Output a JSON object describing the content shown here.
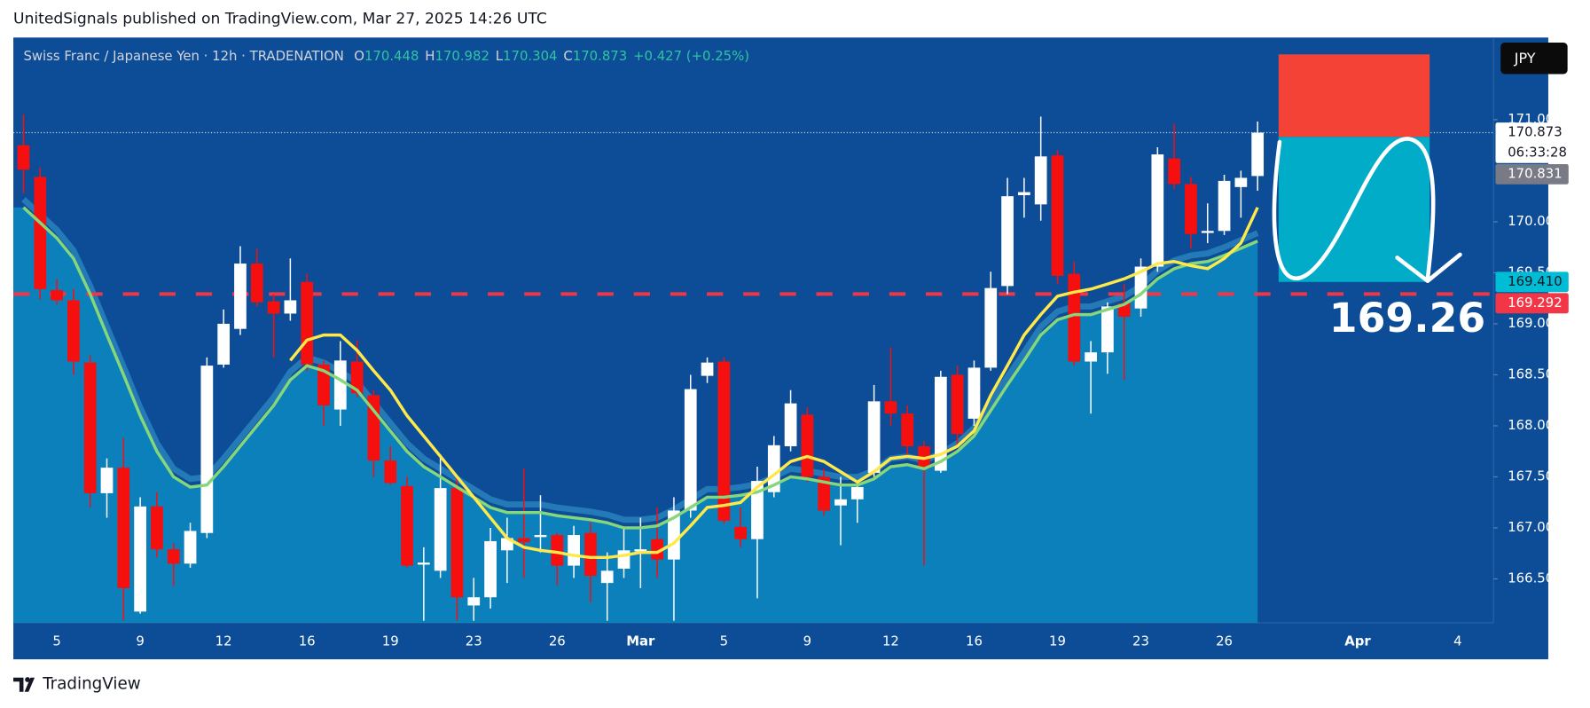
{
  "header": "UnitedSignals published on TradingView.com, Mar 27, 2025 14:26 UTC",
  "footer": "TradingView",
  "currency": "JPY",
  "chart_data": {
    "type": "candlestick",
    "title": "Swiss Franc  / Japanese Yen · 12h · TRADENATION",
    "legend": [
      {
        "key": "O",
        "value": "170.448"
      },
      {
        "key": "H",
        "value": "170.982"
      },
      {
        "key": "L",
        "value": "170.304"
      },
      {
        "key": "C",
        "value": "170.873"
      }
    ],
    "change": "+0.427 (+0.25%)",
    "categories": [
      null,
      null,
      "5",
      null,
      null,
      null,
      null,
      "9",
      null,
      null,
      null,
      null,
      "12",
      null,
      null,
      null,
      null,
      "16",
      null,
      null,
      null,
      null,
      "19",
      null,
      null,
      null,
      null,
      "23",
      null,
      null,
      null,
      null,
      "26",
      null,
      null,
      null,
      null,
      "Mar",
      null,
      null,
      null,
      null,
      "5",
      null,
      null,
      null,
      null,
      "9",
      null,
      null,
      null,
      null,
      "12",
      null,
      null,
      null,
      null,
      "16",
      null,
      null,
      null,
      null,
      "19",
      null,
      null,
      null,
      null,
      "23",
      null,
      null,
      null,
      null,
      "26",
      null,
      null,
      null,
      null,
      null,
      null,
      null,
      "Apr",
      null,
      null,
      null,
      null,
      null,
      "4"
    ],
    "open": [
      170.75,
      170.44,
      169.33,
      169.23,
      168.62,
      167.34,
      167.59,
      166.18,
      167.21,
      166.79,
      166.65,
      166.95,
      168.6,
      168.95,
      169.59,
      169.22,
      169.1,
      169.41,
      168.6,
      168.16,
      168.63,
      168.3,
      167.66,
      167.41,
      166.64,
      166.58,
      167.39,
      166.24,
      166.32,
      166.78,
      166.9,
      166.91,
      166.93,
      166.63,
      166.95,
      166.46,
      166.6,
      166.77,
      166.89,
      166.69,
      167.17,
      168.49,
      168.63,
      167.01,
      166.89,
      167.35,
      167.8,
      168.11,
      167.5,
      167.22,
      167.28,
      167.54,
      168.24,
      168.12,
      167.8,
      167.56,
      168.5,
      168.07,
      168.57,
      169.37,
      170.26,
      170.17,
      170.65,
      169.49,
      168.63,
      168.72,
      169.2,
      169.15,
      169.56,
      170.62,
      170.37,
      169.89,
      169.91,
      170.34,
      170.448,
      null,
      null,
      null,
      null,
      null,
      null,
      null,
      null,
      null,
      null,
      null,
      null
    ],
    "high": [
      171.05,
      170.53,
      169.44,
      169.34,
      168.69,
      167.68,
      167.88,
      167.3,
      167.35,
      166.85,
      167.05,
      168.67,
      169.14,
      169.76,
      169.74,
      169.29,
      169.64,
      169.49,
      168.64,
      168.83,
      168.84,
      168.35,
      167.8,
      167.5,
      166.81,
      167.72,
      167.5,
      166.51,
      167.0,
      167.1,
      167.58,
      167.32,
      166.95,
      167.02,
      167.05,
      166.76,
      167.0,
      167.1,
      167.2,
      167.3,
      168.5,
      168.67,
      168.67,
      167.2,
      167.6,
      167.9,
      168.35,
      168.18,
      167.58,
      167.5,
      167.45,
      168.4,
      168.77,
      168.2,
      167.85,
      168.54,
      168.59,
      168.64,
      169.51,
      170.43,
      170.43,
      171.03,
      170.7,
      169.61,
      168.83,
      169.21,
      169.39,
      169.64,
      170.73,
      170.96,
      170.44,
      170.18,
      170.46,
      170.5,
      170.982,
      null,
      null,
      null,
      null,
      null,
      null,
      null,
      null,
      null,
      null,
      null,
      null
    ],
    "low": [
      170.28,
      169.24,
      169.19,
      168.5,
      167.2,
      167.1,
      166.09,
      166.16,
      166.71,
      166.43,
      166.61,
      166.9,
      168.57,
      168.89,
      169.17,
      168.67,
      169.03,
      168.54,
      168.0,
      168.0,
      168.28,
      167.5,
      167.42,
      166.61,
      166.09,
      166.51,
      166.09,
      166.09,
      166.21,
      166.46,
      166.51,
      166.76,
      166.44,
      166.51,
      166.27,
      166.09,
      166.51,
      166.41,
      166.51,
      166.09,
      167.1,
      168.42,
      167.04,
      166.81,
      166.31,
      167.3,
      167.75,
      167.45,
      167.12,
      166.83,
      167.05,
      167.5,
      168.0,
      167.7,
      166.63,
      167.54,
      167.8,
      168.0,
      168.54,
      169.29,
      170.04,
      170.01,
      169.39,
      168.59,
      168.12,
      168.51,
      168.45,
      169.07,
      169.51,
      170.32,
      169.74,
      169.79,
      169.87,
      170.04,
      170.304,
      null,
      null,
      null,
      null,
      null,
      null,
      null,
      null,
      null,
      null,
      null,
      null
    ],
    "close": [
      170.51,
      169.34,
      169.23,
      168.63,
      167.34,
      167.59,
      166.41,
      167.21,
      166.79,
      166.65,
      166.97,
      168.59,
      169.0,
      169.59,
      169.21,
      169.1,
      169.23,
      168.6,
      168.2,
      168.64,
      168.32,
      167.66,
      167.44,
      166.63,
      166.66,
      167.39,
      166.32,
      166.32,
      166.87,
      166.9,
      166.86,
      166.93,
      166.63,
      166.93,
      166.53,
      166.58,
      166.78,
      166.79,
      166.69,
      167.17,
      168.36,
      168.62,
      167.07,
      166.89,
      167.46,
      167.81,
      168.22,
      167.5,
      167.17,
      167.28,
      167.4,
      168.24,
      168.12,
      167.8,
      167.58,
      168.48,
      167.92,
      168.57,
      169.35,
      170.25,
      170.29,
      170.64,
      169.47,
      168.63,
      168.72,
      169.17,
      169.07,
      169.56,
      170.66,
      170.37,
      169.88,
      169.91,
      170.4,
      170.43,
      170.873,
      null,
      null,
      null,
      null,
      null,
      null,
      null,
      null,
      null,
      null,
      null,
      null
    ],
    "up_color": "#ffffff",
    "down_color": "#f50f0f",
    "overlays": [
      {
        "color": "#86d67a",
        "area_color": "#0c86be",
        "values": [
          170.14,
          169.99,
          169.84,
          169.64,
          169.29,
          168.89,
          168.5,
          168.1,
          167.75,
          167.5,
          167.4,
          167.42,
          167.6,
          167.8,
          168.0,
          168.2,
          168.45,
          168.59,
          168.54,
          168.45,
          168.35,
          168.15,
          167.95,
          167.75,
          167.6,
          167.5,
          167.4,
          167.3,
          167.2,
          167.15,
          167.15,
          167.15,
          167.12,
          167.1,
          167.08,
          167.05,
          167.0,
          167.0,
          167.02,
          167.1,
          167.2,
          167.3,
          167.3,
          167.32,
          167.35,
          167.42,
          167.5,
          167.48,
          167.45,
          167.42,
          167.42,
          167.48,
          167.6,
          167.62,
          167.58,
          167.65,
          167.75,
          167.9,
          168.15,
          168.4,
          168.64,
          168.89,
          169.04,
          169.09,
          169.09,
          169.14,
          169.19,
          169.29,
          169.44,
          169.54,
          169.59,
          169.61,
          169.67,
          169.74,
          169.81
        ]
      },
      {
        "color": "#ffe94a",
        "values": [
          null,
          null,
          null,
          null,
          null,
          null,
          null,
          null,
          null,
          null,
          null,
          null,
          null,
          null,
          null,
          null,
          168.64,
          168.84,
          168.89,
          168.89,
          168.74,
          168.54,
          168.35,
          168.1,
          167.9,
          167.7,
          167.5,
          167.3,
          167.1,
          166.9,
          166.81,
          166.78,
          166.76,
          166.73,
          166.71,
          166.71,
          166.73,
          166.76,
          166.76,
          166.85,
          167.02,
          167.2,
          167.22,
          167.25,
          167.4,
          167.52,
          167.65,
          167.7,
          167.65,
          167.55,
          167.45,
          167.55,
          167.68,
          167.7,
          167.68,
          167.72,
          167.8,
          167.95,
          168.3,
          168.59,
          168.89,
          169.09,
          169.27,
          169.31,
          169.34,
          169.39,
          169.44,
          169.51,
          169.59,
          169.61,
          169.57,
          169.54,
          169.64,
          169.79,
          170.14
        ]
      }
    ],
    "ylim": [
      166.07,
      171.805
    ],
    "yticks": [
      {
        "value": 166.5,
        "label": "166.500"
      },
      {
        "value": 167,
        "label": "167.000"
      },
      {
        "value": 167.5,
        "label": "167.500"
      },
      {
        "value": 168,
        "label": "168.000"
      },
      {
        "value": 168.5,
        "label": "168.500"
      },
      {
        "value": 169,
        "label": "169.000"
      },
      {
        "value": 169.5,
        "label": "169.500"
      },
      {
        "value": 170,
        "label": "170.000"
      },
      {
        "value": 171,
        "label": "171.000"
      }
    ],
    "grid": false,
    "price_labels": [
      {
        "value": 170.873,
        "countdown": "06:33:28",
        "color": "#ffffff",
        "text_color": "#131722",
        "line": "dotted"
      },
      {
        "value": 170.831,
        "color": "#787b86",
        "text_color": "#ffffff"
      },
      {
        "value": 169.41,
        "label": "169.410",
        "color": "#00bcd4",
        "text_color": "#131722"
      },
      {
        "value": 169.292,
        "color": "#f23645",
        "text_color": "#ffffff",
        "line": "dashed"
      }
    ],
    "position": {
      "stop": 171.64,
      "entry": 170.831,
      "target": 169.41,
      "stop_color": "#f44336",
      "target_color": "#00acc8"
    },
    "annotation": "169.26"
  }
}
